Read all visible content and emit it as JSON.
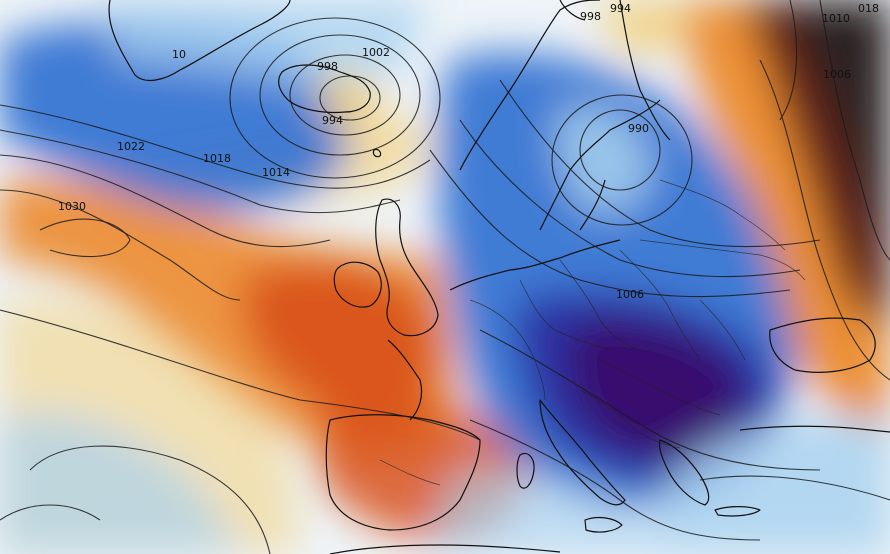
{
  "map": {
    "field_colors": {
      "deep_purple": "#3a0a6b",
      "indigo": "#2a2fa0",
      "blue": "#2f6fd0",
      "light_blue": "#a9d2f0",
      "white": "#eef4f8",
      "yellow": "#f2cf7a",
      "orange": "#ec8a2c",
      "red_orange": "#d9531c",
      "dark_red": "#5a1a12",
      "brown_black": "#2b2220"
    },
    "isobar_labels": {
      "l10": "10",
      "l998": "998",
      "l994": "994",
      "l1002": "1002",
      "l1022": "1022",
      "l1018": "1018",
      "l1014": "1014",
      "l1030": "1030",
      "l998b": "998",
      "l994b": "994",
      "l990": "990",
      "l1010": "1010",
      "l1006": "1006",
      "l1006b": "1006",
      "l018": "018"
    }
  }
}
